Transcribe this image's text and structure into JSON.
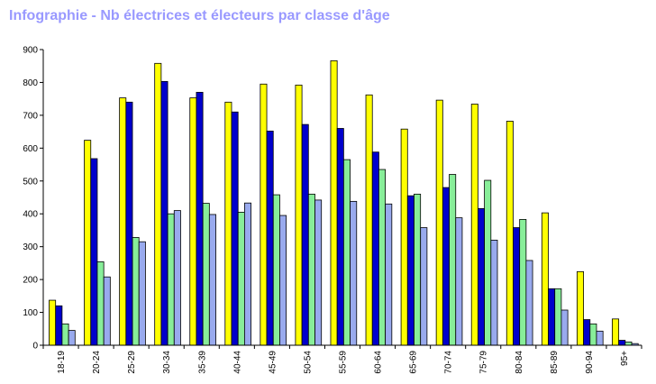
{
  "chart_data": {
    "type": "bar",
    "title": "Infographie - Nb électrices et électeurs par classe d'âge",
    "xlabel": "",
    "ylabel": "",
    "ylim": [
      0,
      900
    ],
    "yticks": [
      "0",
      "100",
      "200",
      "300",
      "400",
      "500",
      "600",
      "700",
      "800",
      "900"
    ],
    "grid": false,
    "legend": "none",
    "categories": [
      "18-19",
      "20-24",
      "25-29",
      "30-34",
      "35-39",
      "40-44",
      "45-49",
      "50-54",
      "55-59",
      "60-64",
      "65-69",
      "70-74",
      "75-79",
      "80-84",
      "85-89",
      "90-94",
      "95+"
    ],
    "series": [
      {
        "color": "#ffff00",
        "values": [
          137,
          624,
          753,
          858,
          753,
          740,
          795,
          792,
          866,
          762,
          658,
          746,
          734,
          682,
          403,
          224,
          80
        ]
      },
      {
        "color": "#0000cc",
        "values": [
          120,
          568,
          740,
          803,
          770,
          710,
          652,
          672,
          660,
          588,
          455,
          480,
          416,
          358,
          172,
          78,
          15
        ]
      },
      {
        "color": "#88ee99",
        "values": [
          65,
          254,
          328,
          400,
          432,
          405,
          458,
          460,
          565,
          535,
          460,
          520,
          502,
          383,
          172,
          65,
          10
        ]
      },
      {
        "color": "#99aaee",
        "values": [
          45,
          208,
          315,
          410,
          398,
          433,
          395,
          442,
          438,
          430,
          358,
          388,
          320,
          258,
          107,
          43,
          5
        ]
      }
    ]
  }
}
